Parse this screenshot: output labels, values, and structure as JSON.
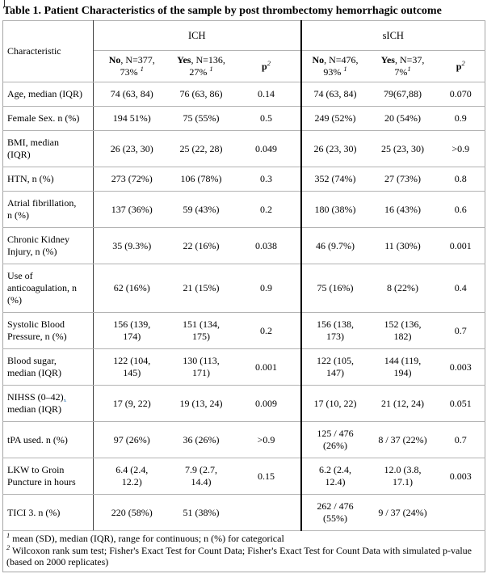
{
  "title": "Table 1. Patient Characteristics of the sample by post thrombectomy hemorrhagic outcome",
  "table": {
    "characteristic_header": "Characteristic",
    "groups": [
      {
        "label": "ICH"
      },
      {
        "label": "sICH"
      }
    ],
    "subheaders": [
      {
        "name": "ich-no",
        "bold": "No",
        "rest": ", N=377,",
        "line2": "73% ",
        "sup": "1",
        "is_p": false
      },
      {
        "name": "ich-yes",
        "bold": "Yes",
        "rest": ", N=136,",
        "line2": "27% ",
        "sup": "1",
        "is_p": false
      },
      {
        "name": "ich-p",
        "bold": "p",
        "sup": "2",
        "is_p": true
      },
      {
        "name": "sich-no",
        "bold": "No",
        "rest": ", N=476,",
        "line2": "93% ",
        "sup": "1",
        "is_p": false
      },
      {
        "name": "sich-yes",
        "bold": "Yes",
        "rest": ", N=37,",
        "line2": "7%",
        "sup": "1",
        "is_p": false
      },
      {
        "name": "sich-p",
        "bold": "p",
        "sup": "2",
        "is_p": true
      }
    ],
    "rows": [
      {
        "label": "Age, median (IQR)",
        "cells": [
          "74 (63, 84)",
          "76 (63, 86)",
          "0.14",
          "74 (63, 84)",
          "79(67,88)",
          "0.070"
        ]
      },
      {
        "label": "Female Sex. n (%)",
        "cells": [
          "194 51%)",
          "75 (55%)",
          "0.5",
          "249 (52%)",
          "20 (54%)",
          "0.9"
        ]
      },
      {
        "label": "BMI, median\n(IQR)",
        "cells": [
          "26 (23, 30)",
          "25 (22, 28)",
          "0.049",
          "26 (23, 30)",
          "25 (23, 30)",
          ">0.9"
        ]
      },
      {
        "label": "HTN, n (%)",
        "cells": [
          "273 (72%)",
          "106 (78%)",
          "0.3",
          "352 (74%)",
          "27 (73%)",
          "0.8"
        ]
      },
      {
        "label": "Atrial fibrillation,\nn (%)",
        "cells": [
          "137 (36%)",
          "59 (43%)",
          "0.2",
          "180 (38%)",
          "16 (43%)",
          "0.6"
        ]
      },
      {
        "label": "Chronic Kidney\nInjury, n (%)",
        "cells": [
          "35 (9.3%)",
          "22 (16%)",
          "0.038",
          "46 (9.7%)",
          "11 (30%)",
          "0.001"
        ]
      },
      {
        "label": "Use of\nanticoagulation, n\n(%)",
        "cells": [
          "62 (16%)",
          "21 (15%)",
          "0.9",
          "75 (16%)",
          "8 (22%)",
          "0.4"
        ]
      },
      {
        "label": "Systolic Blood\nPressure, n (%)",
        "cells": [
          "156 (139,\n174)",
          "151 (134,\n175)",
          "0.2",
          "156 (138,\n173)",
          "152 (136,\n182)",
          "0.7"
        ]
      },
      {
        "label": "Blood sugar,\nmedian (IQR)",
        "cells": [
          "122 (104,\n145)",
          "130 (113,\n171)",
          "0.001",
          "122 (105,\n147)",
          "144 (119,\n194)",
          "0.003"
        ]
      },
      {
        "label": "NIHSS (0–42)",
        "label_tracked": ", ",
        "label_after": "\nmedian (IQR)",
        "cells": [
          "17 (9, 22)",
          "19 (13, 24)",
          "0.009",
          "17 (10, 22)",
          "21 (12, 24)",
          "0.051"
        ]
      },
      {
        "label": "tPA used. n (%)",
        "cells": [
          "97 (26%)",
          "36 (26%)",
          ">0.9",
          "125 / 476\n(26%)",
          "8 / 37 (22%)",
          "0.7"
        ]
      },
      {
        "label": "LKW to Groin\nPuncture in hours",
        "cells": [
          "6.4 (2.4,\n12.2)",
          "7.9 (2.7,\n14.4)",
          "0.15",
          "6.2 (2.4,\n12.4)",
          "12.0 (3.8,\n17.1)",
          "0.003"
        ]
      },
      {
        "label": "TICI 3. n (%)",
        "cells": [
          "220 (58%)",
          "51 (38%)",
          "",
          "262 / 476\n(55%)",
          "9 / 37 (24%)",
          ""
        ]
      }
    ],
    "footnotes": [
      {
        "sup": "1",
        "text": "mean (SD), median (IQR), range for continuous; n (%) for categorical"
      },
      {
        "sup": "2",
        "text": "Wilcoxon rank sum test; Fisher's Exact Test for Count Data; Fisher's Exact Test for Count Data with simulated p-value (based on 2000 replicates)"
      }
    ],
    "tracked_change_color": "#2e74b5"
  }
}
